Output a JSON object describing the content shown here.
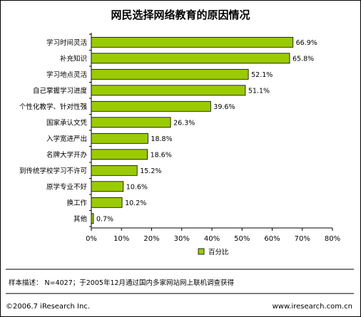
{
  "chart_data": {
    "type": "bar",
    "orientation": "horizontal",
    "title": "网民选择网络教育的原因情况",
    "categories": [
      "学习时间灵活",
      "补充知识",
      "学习地点灵活",
      "自己掌握学习进度",
      "个性化教学、针对性强",
      "国家承认文凭",
      "入学宽进严出",
      "名牌大学开办",
      "到传统学校学习不许可",
      "原学专业不好",
      "换工作",
      "其他"
    ],
    "values": [
      66.9,
      65.8,
      52.1,
      51.1,
      39.6,
      26.3,
      18.8,
      18.6,
      15.2,
      10.6,
      10.2,
      0.7
    ],
    "value_labels": [
      "66.9%",
      "65.8%",
      "52.1%",
      "51.1%",
      "39.6%",
      "26.3%",
      "18.8%",
      "18.6%",
      "15.2%",
      "10.6%",
      "10.2%",
      "0.7%"
    ],
    "series": [
      {
        "name": "百分比",
        "values": [
          66.9,
          65.8,
          52.1,
          51.1,
          39.6,
          26.3,
          18.8,
          18.6,
          15.2,
          10.6,
          10.2,
          0.7
        ]
      }
    ],
    "xlim": [
      0,
      80
    ],
    "xticks": [
      "0%",
      "10%",
      "20%",
      "30%",
      "40%",
      "50%",
      "60%",
      "70%",
      "80%"
    ],
    "grid": false,
    "legend_position": "bottom-right",
    "bar_color": "#99cc00",
    "bar_edge_color": "#000000"
  },
  "note": "样本描述： N=4027；于2005年12月通过国内多家网站网上联机调查获得",
  "footer": {
    "copyright": "©2006.7 iResearch Inc.",
    "website": "www.iresearch.com.cn"
  }
}
